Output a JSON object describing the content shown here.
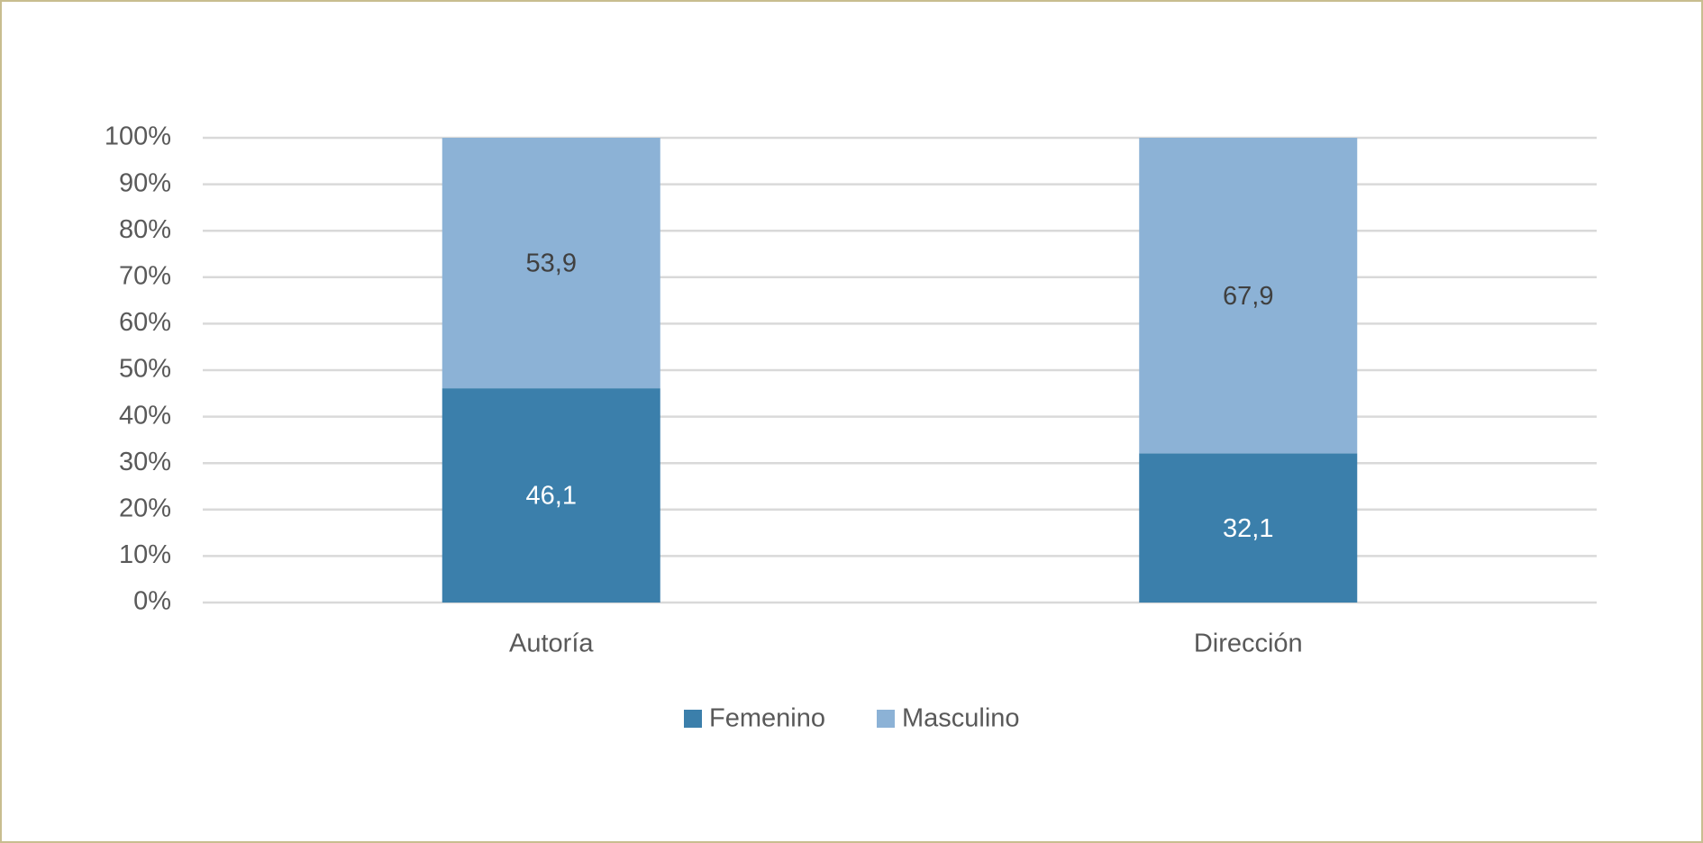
{
  "chart_data": {
    "type": "stacked_bar",
    "categories": [
      "Autoría",
      "Dirección"
    ],
    "series": [
      {
        "name": "Femenino",
        "color": "#3b7fab",
        "values": [
          46.1,
          32.1
        ],
        "value_labels": [
          "46,1",
          "32,1"
        ]
      },
      {
        "name": "Masculino",
        "color": "#8cb2d6",
        "values": [
          53.9,
          67.9
        ],
        "value_labels": [
          "53,9",
          "67,9"
        ]
      }
    ],
    "ylim": [
      0,
      100
    ],
    "yticks": [
      {
        "value": 0,
        "label": "0%"
      },
      {
        "value": 10,
        "label": "10%"
      },
      {
        "value": 20,
        "label": "20%"
      },
      {
        "value": 30,
        "label": "30%"
      },
      {
        "value": 40,
        "label": "40%"
      },
      {
        "value": 50,
        "label": "50%"
      },
      {
        "value": 60,
        "label": "60%"
      },
      {
        "value": 70,
        "label": "70%"
      },
      {
        "value": 80,
        "label": "80%"
      },
      {
        "value": 90,
        "label": "90%"
      },
      {
        "value": 100,
        "label": "100%"
      }
    ],
    "grid": true,
    "legend": "bottom"
  }
}
